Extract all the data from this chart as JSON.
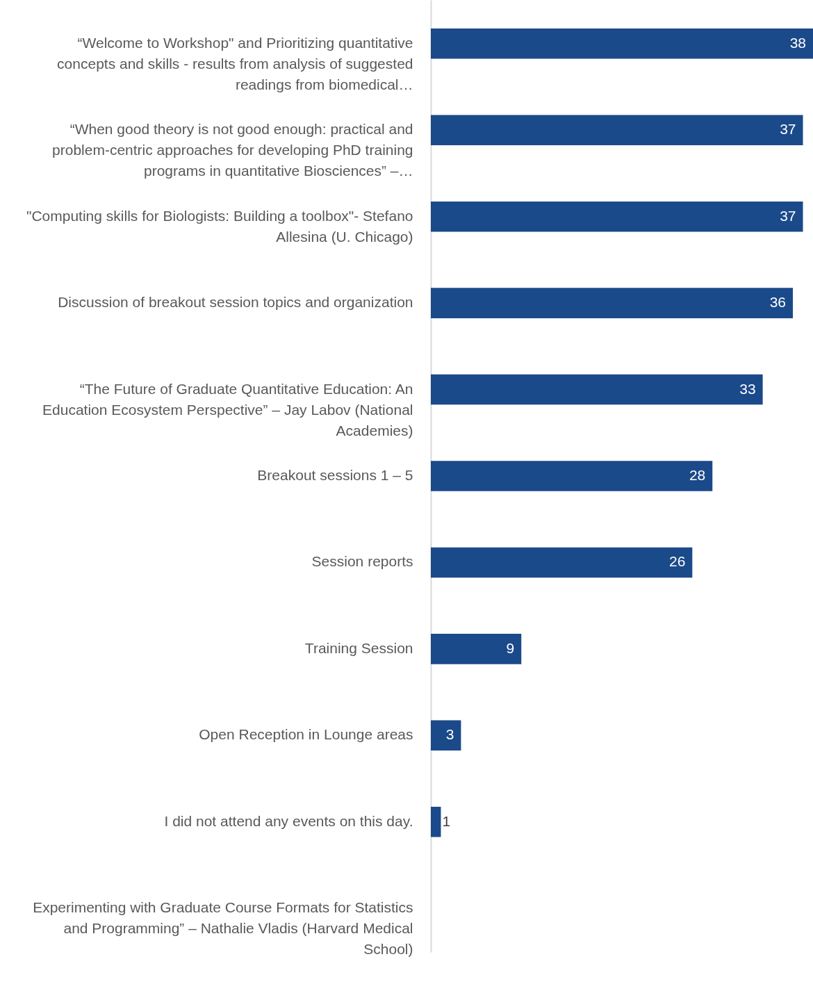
{
  "chart_data": {
    "type": "bar",
    "orientation": "horizontal",
    "tick_labels": "y",
    "color": "#1b4a8a",
    "xlim": [
      0,
      38
    ],
    "categories": [
      "“Welcome to Workshop\" and Prioritizing quantitative concepts and skills - results from analysis of suggested readings from biomedical…",
      "“When good theory is not good enough: practical and problem-centric approaches for developing PhD training programs in quantitative Biosciences” –…",
      "\"Computing skills for Biologists: Building a toolbox\"- Stefano Allesina (U. Chicago)",
      "Discussion of breakout session topics and organization",
      "“The Future of Graduate Quantitative Education: An Education Ecosystem Perspective” – Jay Labov (National Academies)",
      "Breakout sessions 1 – 5",
      "Session reports",
      "Training Session",
      "Open Reception in Lounge areas",
      "I did not attend any events on this day.",
      "Experimenting with Graduate Course Formats for Statistics and Programming” – Nathalie Vladis (Harvard Medical School)"
    ],
    "values": [
      38,
      37,
      37,
      36,
      33,
      28,
      26,
      9,
      3,
      1,
      0
    ],
    "value_labels": [
      "38",
      "37",
      "37",
      "36",
      "33",
      "28",
      "26",
      "9",
      "3",
      "1",
      null
    ]
  }
}
